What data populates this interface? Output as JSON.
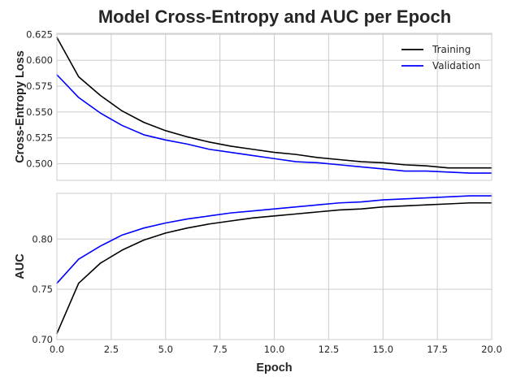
{
  "title": "Model Cross-Entropy and AUC per Epoch",
  "colors": {
    "training": "#000000",
    "validation": "#0000ff",
    "grid": "#cccccc",
    "text": "#262626"
  },
  "chart_data": [
    {
      "type": "line",
      "ylabel": "Cross-Entropy Loss",
      "xlabel": "",
      "xlim": [
        0,
        20
      ],
      "ylim": [
        0.484,
        0.626
      ],
      "xticks": [
        0,
        2.5,
        5,
        7.5,
        10,
        12.5,
        15,
        17.5,
        20
      ],
      "yticks": [
        0.5,
        0.525,
        0.55,
        0.575,
        0.6,
        0.625
      ],
      "ytick_labels": [
        "0.500",
        "0.525",
        "0.550",
        "0.575",
        "0.600",
        "0.625"
      ],
      "grid": true,
      "legend": "top-right",
      "x": [
        0,
        1,
        2,
        3,
        4,
        5,
        6,
        7,
        8,
        9,
        10,
        11,
        12,
        13,
        14,
        15,
        16,
        17,
        18,
        19,
        20
      ],
      "series": [
        {
          "name": "Training",
          "color": "#000000",
          "values": [
            0.622,
            0.584,
            0.566,
            0.551,
            0.54,
            0.532,
            0.526,
            0.521,
            0.517,
            0.514,
            0.511,
            0.509,
            0.506,
            0.504,
            0.502,
            0.501,
            0.499,
            0.498,
            0.496,
            0.496,
            0.496
          ]
        },
        {
          "name": "Validation",
          "color": "#0000ff",
          "values": [
            0.586,
            0.564,
            0.549,
            0.537,
            0.528,
            0.523,
            0.519,
            0.514,
            0.511,
            0.508,
            0.505,
            0.502,
            0.501,
            0.499,
            0.497,
            0.495,
            0.493,
            0.493,
            0.492,
            0.491,
            0.491
          ]
        }
      ]
    },
    {
      "type": "line",
      "ylabel": "AUC",
      "xlabel": "Epoch",
      "xlim": [
        0,
        20
      ],
      "ylim": [
        0.7,
        0.8455
      ],
      "xticks": [
        0,
        2.5,
        5,
        7.5,
        10,
        12.5,
        15,
        17.5,
        20
      ],
      "xtick_labels": [
        "0.0",
        "2.5",
        "5.0",
        "7.5",
        "10.0",
        "12.5",
        "15.0",
        "17.5",
        "20.0"
      ],
      "yticks": [
        0.7,
        0.75,
        0.8
      ],
      "ytick_labels": [
        "0.70",
        "0.75",
        "0.80"
      ],
      "grid": true,
      "x": [
        0,
        1,
        2,
        3,
        4,
        5,
        6,
        7,
        8,
        9,
        10,
        11,
        12,
        13,
        14,
        15,
        16,
        17,
        18,
        19,
        20
      ],
      "series": [
        {
          "name": "Training",
          "color": "#000000",
          "values": [
            0.706,
            0.756,
            0.776,
            0.789,
            0.799,
            0.806,
            0.811,
            0.815,
            0.818,
            0.821,
            0.823,
            0.825,
            0.827,
            0.829,
            0.83,
            0.832,
            0.833,
            0.834,
            0.835,
            0.836,
            0.836
          ]
        },
        {
          "name": "Validation",
          "color": "#0000ff",
          "values": [
            0.756,
            0.78,
            0.793,
            0.804,
            0.811,
            0.816,
            0.82,
            0.823,
            0.826,
            0.828,
            0.83,
            0.832,
            0.834,
            0.836,
            0.837,
            0.839,
            0.84,
            0.841,
            0.842,
            0.843,
            0.843
          ]
        }
      ]
    }
  ]
}
